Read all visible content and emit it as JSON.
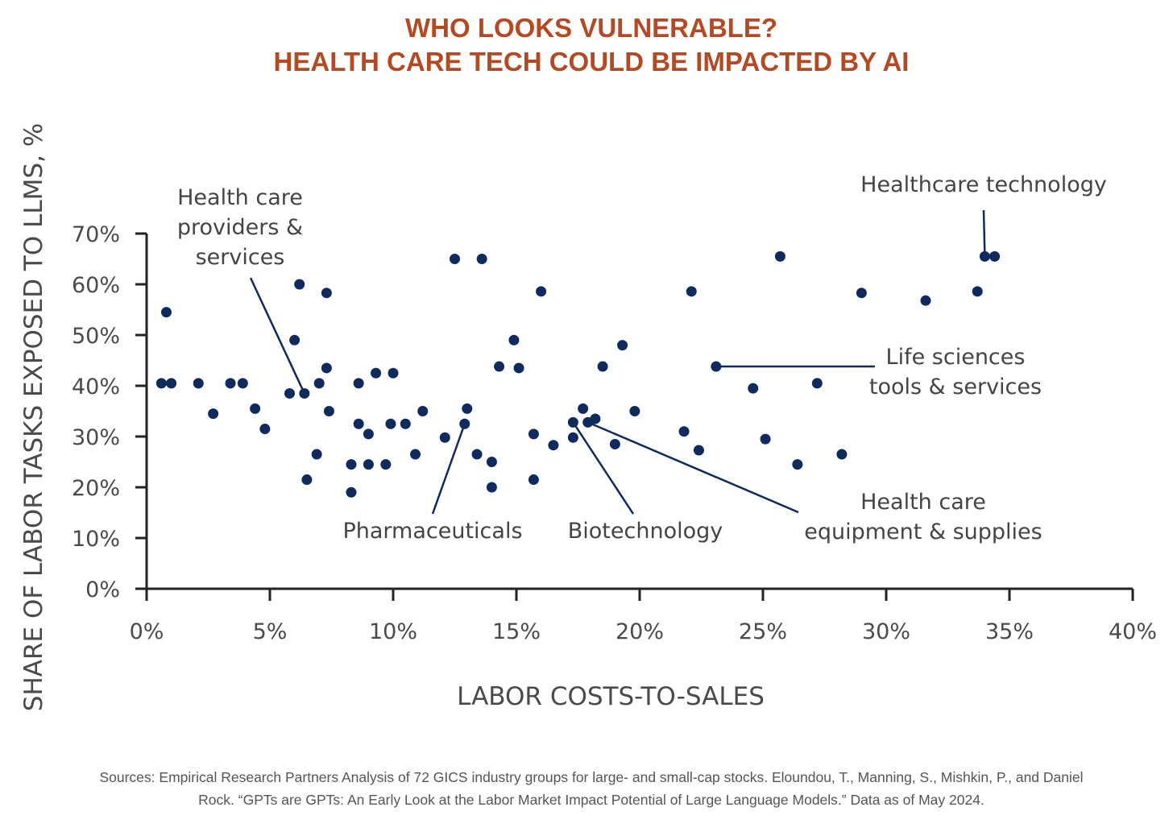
{
  "title_lines": [
    "WHO LOOKS VULNERABLE?",
    "HEALTH CARE TECH COULD BE IMPACTED BY AI"
  ],
  "source_lines": [
    "Sources: Empirical Research Partners Analysis of 72 GICS industry groups for large- and small-cap stocks. Eloundou, T., Manning, S., Mishkin, P., and Daniel",
    "Rock. “GPTs are GPTs: An Early Look at the Labor Market Impact Potential of Large Language Models.” Data as of May 2024."
  ],
  "colors": {
    "title": "#b34a23",
    "marker": "#0f2a5c",
    "axis": "#222222"
  },
  "chart_data": {
    "type": "scatter",
    "xlabel": "LABOR COSTS-TO-SALES",
    "ylabel": "SHARE OF LABOR TASKS EXPOSED TO LLMS, %",
    "xlim": [
      0,
      40
    ],
    "ylim": [
      0,
      70
    ],
    "x_ticks": [
      0,
      5,
      10,
      15,
      20,
      25,
      30,
      35,
      40
    ],
    "x_tick_labels": [
      "0%",
      "5%",
      "10%",
      "15%",
      "20%",
      "25%",
      "30%",
      "35%",
      "40%"
    ],
    "y_ticks": [
      0,
      10,
      20,
      30,
      40,
      50,
      60,
      70
    ],
    "y_tick_labels": [
      "0%",
      "10%",
      "20%",
      "30%",
      "40%",
      "50%",
      "60%",
      "70%"
    ],
    "grid": false,
    "points": [
      {
        "x": 0.6,
        "y": 40.5
      },
      {
        "x": 0.8,
        "y": 54.5
      },
      {
        "x": 1.0,
        "y": 40.5
      },
      {
        "x": 2.1,
        "y": 40.5
      },
      {
        "x": 2.7,
        "y": 34.5
      },
      {
        "x": 3.4,
        "y": 40.5
      },
      {
        "x": 3.9,
        "y": 40.5
      },
      {
        "x": 4.4,
        "y": 35.5
      },
      {
        "x": 4.8,
        "y": 31.5
      },
      {
        "x": 5.8,
        "y": 38.5
      },
      {
        "x": 6.0,
        "y": 49.0
      },
      {
        "x": 6.2,
        "y": 60.0
      },
      {
        "x": 6.4,
        "y": 38.5
      },
      {
        "x": 6.5,
        "y": 21.5
      },
      {
        "x": 6.9,
        "y": 26.5
      },
      {
        "x": 7.0,
        "y": 40.5
      },
      {
        "x": 7.3,
        "y": 58.3
      },
      {
        "x": 7.3,
        "y": 43.5
      },
      {
        "x": 7.4,
        "y": 35.0
      },
      {
        "x": 8.3,
        "y": 24.5
      },
      {
        "x": 8.3,
        "y": 19.0
      },
      {
        "x": 8.6,
        "y": 40.5
      },
      {
        "x": 8.6,
        "y": 32.5
      },
      {
        "x": 9.0,
        "y": 30.5
      },
      {
        "x": 9.0,
        "y": 24.5
      },
      {
        "x": 9.3,
        "y": 42.5
      },
      {
        "x": 9.7,
        "y": 24.5
      },
      {
        "x": 9.9,
        "y": 32.5
      },
      {
        "x": 10.0,
        "y": 42.5
      },
      {
        "x": 10.5,
        "y": 32.5
      },
      {
        "x": 10.9,
        "y": 26.5
      },
      {
        "x": 11.2,
        "y": 35.0
      },
      {
        "x": 12.1,
        "y": 29.8
      },
      {
        "x": 12.5,
        "y": 65.0
      },
      {
        "x": 12.9,
        "y": 32.5
      },
      {
        "x": 13.0,
        "y": 35.5
      },
      {
        "x": 13.4,
        "y": 26.5
      },
      {
        "x": 13.6,
        "y": 65.0
      },
      {
        "x": 14.0,
        "y": 25.0
      },
      {
        "x": 14.0,
        "y": 20.0
      },
      {
        "x": 14.3,
        "y": 43.8
      },
      {
        "x": 14.9,
        "y": 49.0
      },
      {
        "x": 15.1,
        "y": 43.5
      },
      {
        "x": 15.7,
        "y": 30.5
      },
      {
        "x": 15.7,
        "y": 21.5
      },
      {
        "x": 16.0,
        "y": 58.6
      },
      {
        "x": 16.5,
        "y": 28.3
      },
      {
        "x": 17.3,
        "y": 29.8
      },
      {
        "x": 17.3,
        "y": 32.8
      },
      {
        "x": 17.7,
        "y": 35.5
      },
      {
        "x": 17.9,
        "y": 32.8
      },
      {
        "x": 18.2,
        "y": 33.5
      },
      {
        "x": 18.5,
        "y": 43.8
      },
      {
        "x": 19.0,
        "y": 28.5
      },
      {
        "x": 19.3,
        "y": 48.0
      },
      {
        "x": 19.8,
        "y": 35.0
      },
      {
        "x": 21.8,
        "y": 31.0
      },
      {
        "x": 22.1,
        "y": 58.6
      },
      {
        "x": 22.4,
        "y": 27.3
      },
      {
        "x": 23.1,
        "y": 43.8
      },
      {
        "x": 24.6,
        "y": 39.5
      },
      {
        "x": 25.1,
        "y": 29.5
      },
      {
        "x": 25.7,
        "y": 65.5
      },
      {
        "x": 26.4,
        "y": 24.5
      },
      {
        "x": 27.2,
        "y": 40.5
      },
      {
        "x": 28.2,
        "y": 26.5
      },
      {
        "x": 29.0,
        "y": 58.3
      },
      {
        "x": 31.6,
        "y": 56.8
      },
      {
        "x": 33.7,
        "y": 58.6
      },
      {
        "x": 34.0,
        "y": 65.5
      },
      {
        "x": 34.4,
        "y": 65.5
      }
    ],
    "annotations": [
      {
        "lines": [
          "Health care",
          "providers &",
          "services"
        ],
        "target": {
          "x": 6.4,
          "y": 38.5
        }
      },
      {
        "lines": [
          "Healthcare technology"
        ],
        "target": {
          "x": 34.0,
          "y": 65.5
        }
      },
      {
        "lines": [
          "Life sciences",
          "tools & services"
        ],
        "target": {
          "x": 23.1,
          "y": 43.8
        }
      },
      {
        "lines": [
          "Pharmaceuticals"
        ],
        "target": {
          "x": 12.9,
          "y": 32.5
        }
      },
      {
        "lines": [
          "Biotechnology"
        ],
        "target": {
          "x": 17.3,
          "y": 32.8
        }
      },
      {
        "lines": [
          "Health care",
          "equipment & supplies"
        ],
        "target": {
          "x": 17.9,
          "y": 32.8
        }
      }
    ]
  }
}
